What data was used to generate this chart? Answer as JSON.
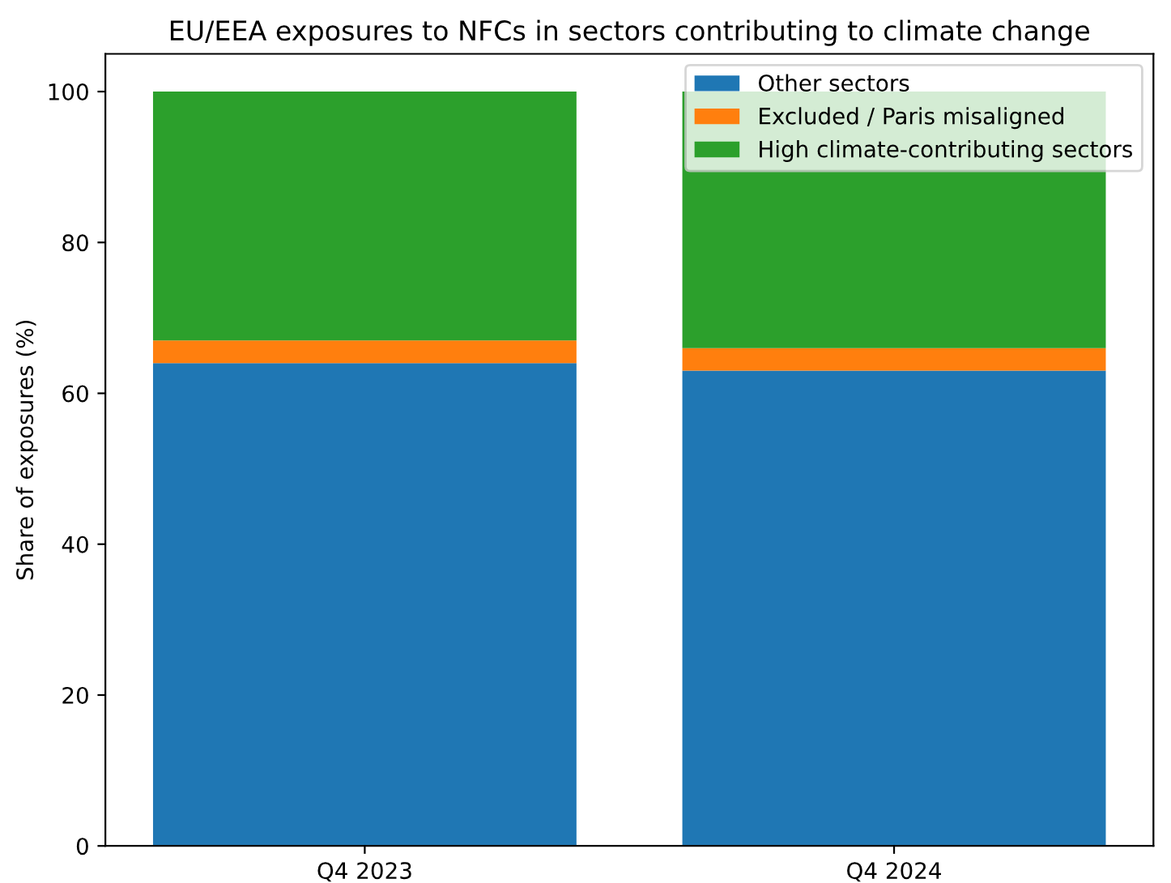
{
  "chart_data": {
    "type": "bar",
    "title": "EU/EEA exposures to NFCs in sectors contributing to climate change",
    "ylabel": "Share of exposures (%)",
    "categories": [
      "Q4 2023",
      "Q4 2024"
    ],
    "stacked": true,
    "series": [
      {
        "name": "Other sectors",
        "color": "#1f77b4",
        "values": [
          64,
          63
        ]
      },
      {
        "name": "Excluded / Paris misaligned",
        "color": "#ff7f0e",
        "values": [
          3,
          3
        ]
      },
      {
        "name": "High climate-contributing sectors",
        "color": "#2ca02c",
        "values": [
          33,
          34
        ]
      }
    ],
    "ylim": [
      0,
      105
    ],
    "yticks": [
      0,
      20,
      40,
      60,
      80,
      100
    ],
    "grid": false,
    "legend": "top right"
  }
}
